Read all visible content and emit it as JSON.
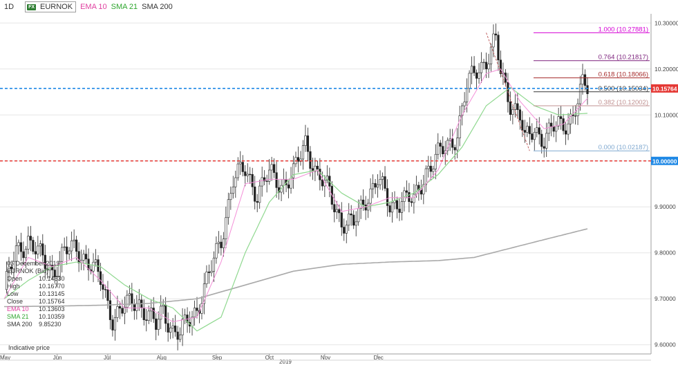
{
  "header": {
    "interval": "1D",
    "fx_badge": "FX",
    "symbol": "EURNOK",
    "ema10": "EMA 10",
    "sma21": "SMA 21",
    "sma200": "SMA 200"
  },
  "info": {
    "date": "05 December 2019",
    "instrument": "EURNOK (Bid)",
    "rows": [
      {
        "label": "Open",
        "value": "10.14630"
      },
      {
        "label": "High",
        "value": "10.16770"
      },
      {
        "label": "Low",
        "value": "10.13145"
      },
      {
        "label": "Close",
        "value": "10.15764"
      },
      {
        "label": "EMA 10",
        "value": "10.13603"
      },
      {
        "label": "SMA 21",
        "value": "10.10359"
      },
      {
        "label": "SMA 200",
        "value": "9.85230"
      }
    ]
  },
  "note": "Indicative price",
  "colors": {
    "candle_up": "#ffffff",
    "candle_down": "#222222",
    "ema10": "#f48fd8",
    "sma21": "#8fd88f",
    "sma200": "#a9a9a9",
    "price_line": "#1e88e5",
    "level_line": "#e53935",
    "fib_100": "#d500d5",
    "fib_764": "#7b1f7b",
    "fib_618": "#a52a2a",
    "fib_500": "#333333",
    "fib_382": "#c09090",
    "fib_000": "#7fa8d0",
    "ema_label": "#e040a0",
    "sma21_label": "#2ea62e"
  },
  "chart_data": {
    "type": "candlestick",
    "title": "EURNOK",
    "ylim": [
      9.58,
      10.32
    ],
    "y_ticks": [
      "10.30000",
      "10.20000",
      "10.10000",
      "10.00000",
      "9.90000",
      "9.80000",
      "9.70000",
      "9.60000"
    ],
    "x_ticks": [
      "May",
      "Jun",
      "Jul",
      "Aug",
      "Sep",
      "Oct",
      "Nov",
      "Dec"
    ],
    "x_year": "2019",
    "current_price": {
      "value": 10.15764,
      "label": "10.15764"
    },
    "level": {
      "value": 10.0,
      "label": "10.00000"
    },
    "fibonacci": [
      {
        "ratio": "1.000",
        "value": 10.27881,
        "label": "1.000 (10.27881)"
      },
      {
        "ratio": "0.764",
        "value": 10.21817,
        "label": "0.764 (10.21817)"
      },
      {
        "ratio": "0.618",
        "value": 10.18066,
        "label": "0.618 (10.18066)"
      },
      {
        "ratio": "0.500",
        "value": 10.15034,
        "label": "0.500 (10.15034)"
      },
      {
        "ratio": "0.382",
        "value": 10.12002,
        "label": "0.382 (10.12002)"
      },
      {
        "ratio": "0.000",
        "value": 10.02187,
        "label": "0.000 (10.02187)"
      }
    ],
    "close_anchors": [
      [
        0,
        9.72
      ],
      [
        5,
        9.8
      ],
      [
        10,
        9.83
      ],
      [
        15,
        9.79
      ],
      [
        20,
        9.76
      ],
      [
        25,
        9.8
      ],
      [
        30,
        9.81
      ],
      [
        35,
        9.78
      ],
      [
        40,
        9.74
      ],
      [
        45,
        9.66
      ],
      [
        50,
        9.68
      ],
      [
        55,
        9.7
      ],
      [
        60,
        9.66
      ],
      [
        63,
        9.64
      ],
      [
        66,
        9.68
      ],
      [
        70,
        9.63
      ],
      [
        73,
        9.62
      ],
      [
        76,
        9.65
      ],
      [
        80,
        9.68
      ],
      [
        85,
        9.75
      ],
      [
        90,
        9.83
      ],
      [
        95,
        9.96
      ],
      [
        100,
        9.98
      ],
      [
        105,
        9.93
      ],
      [
        110,
        9.97
      ],
      [
        115,
        9.95
      ],
      [
        120,
        9.97
      ],
      [
        125,
        10.04
      ],
      [
        130,
        9.97
      ],
      [
        135,
        9.93
      ],
      [
        140,
        9.87
      ],
      [
        145,
        9.86
      ],
      [
        150,
        9.92
      ],
      [
        155,
        9.96
      ],
      [
        160,
        9.9
      ],
      [
        165,
        9.92
      ],
      [
        170,
        9.91
      ],
      [
        175,
        9.98
      ],
      [
        180,
        10.01
      ],
      [
        185,
        10.04
      ],
      [
        188,
        10.06
      ],
      [
        192,
        10.16
      ],
      [
        196,
        10.2
      ],
      [
        200,
        10.22
      ],
      [
        204,
        10.26
      ],
      [
        206,
        10.19
      ],
      [
        210,
        10.13
      ],
      [
        214,
        10.1
      ],
      [
        216,
        10.04
      ],
      [
        220,
        10.07
      ],
      [
        224,
        10.05
      ],
      [
        228,
        10.07
      ],
      [
        232,
        10.08
      ],
      [
        236,
        10.1
      ],
      [
        240,
        10.16
      ],
      [
        242,
        10.15764
      ]
    ],
    "ema10": [
      [
        0,
        9.7
      ],
      [
        10,
        9.79
      ],
      [
        20,
        9.77
      ],
      [
        30,
        9.79
      ],
      [
        40,
        9.74
      ],
      [
        50,
        9.68
      ],
      [
        60,
        9.68
      ],
      [
        70,
        9.65
      ],
      [
        80,
        9.66
      ],
      [
        90,
        9.78
      ],
      [
        100,
        9.95
      ],
      [
        110,
        9.96
      ],
      [
        120,
        9.96
      ],
      [
        130,
        9.98
      ],
      [
        140,
        9.89
      ],
      [
        150,
        9.9
      ],
      [
        160,
        9.92
      ],
      [
        170,
        9.92
      ],
      [
        180,
        9.98
      ],
      [
        190,
        10.1
      ],
      [
        200,
        10.19
      ],
      [
        206,
        10.2
      ],
      [
        214,
        10.13
      ],
      [
        224,
        10.07
      ],
      [
        232,
        10.08
      ],
      [
        242,
        10.13603
      ]
    ],
    "sma21": [
      [
        0,
        9.7
      ],
      [
        10,
        9.74
      ],
      [
        20,
        9.77
      ],
      [
        30,
        9.78
      ],
      [
        40,
        9.77
      ],
      [
        50,
        9.73
      ],
      [
        60,
        9.7
      ],
      [
        70,
        9.68
      ],
      [
        80,
        9.63
      ],
      [
        90,
        9.66
      ],
      [
        100,
        9.8
      ],
      [
        110,
        9.91
      ],
      [
        120,
        9.97
      ],
      [
        130,
        9.98
      ],
      [
        140,
        9.93
      ],
      [
        150,
        9.9
      ],
      [
        160,
        9.91
      ],
      [
        170,
        9.93
      ],
      [
        180,
        9.97
      ],
      [
        190,
        10.03
      ],
      [
        200,
        10.12
      ],
      [
        210,
        10.16
      ],
      [
        220,
        10.12
      ],
      [
        230,
        10.1
      ],
      [
        242,
        10.10359
      ]
    ],
    "sma200": [
      [
        0,
        9.683
      ],
      [
        20,
        9.684
      ],
      [
        40,
        9.686
      ],
      [
        60,
        9.69
      ],
      [
        80,
        9.7
      ],
      [
        100,
        9.73
      ],
      [
        120,
        9.76
      ],
      [
        140,
        9.775
      ],
      [
        160,
        9.78
      ],
      [
        180,
        9.783
      ],
      [
        195,
        9.79
      ],
      [
        210,
        9.81
      ],
      [
        225,
        9.83
      ],
      [
        242,
        9.8523
      ]
    ]
  }
}
